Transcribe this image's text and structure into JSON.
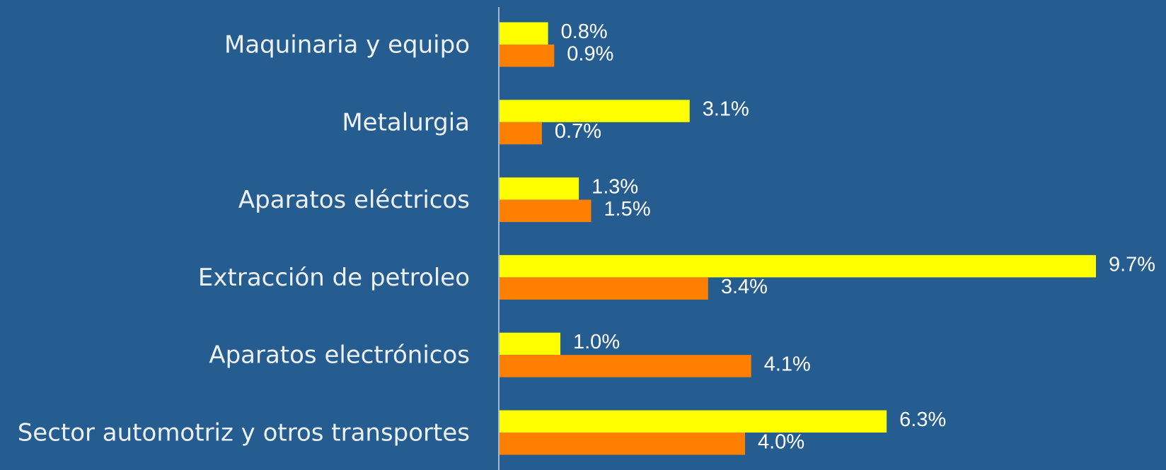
{
  "chart_data": {
    "type": "barh",
    "categories": [
      "Maquinaria y equipo",
      "Metalurgia",
      "Aparatos eléctricos",
      "Extracción de petroleo",
      "Aparatos electrónicos",
      "Sector automotriz y otros transportes"
    ],
    "series": [
      {
        "color": "#ffff00",
        "values": [
          0.8,
          3.1,
          1.3,
          9.7,
          1.0,
          6.3
        ],
        "value_labels": [
          "0.8%",
          "3.1%",
          "1.3%",
          "9.7%",
          "1.0%",
          "6.3%"
        ]
      },
      {
        "color": "#ff7f00",
        "values": [
          0.9,
          0.7,
          1.5,
          3.4,
          4.1,
          4.0
        ],
        "value_labels": [
          "0.9%",
          "0.7%",
          "1.5%",
          "3.4%",
          "4.1%",
          "4.0%"
        ]
      }
    ],
    "xlim": [
      0,
      10.7
    ]
  }
}
